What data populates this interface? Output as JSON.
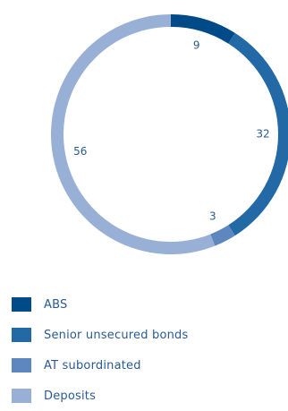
{
  "chart_data": {
    "type": "pie",
    "variant": "donut",
    "categories": [
      "ABS",
      "Senior unsecured bonds",
      "AT subordinated",
      "Deposits"
    ],
    "values": [
      9,
      32,
      3,
      56
    ],
    "colors": [
      "#004b87",
      "#2269a5",
      "#5f87bf",
      "#99b0d6"
    ],
    "label_color": "#2a5a91",
    "legend_text_color": "#2a5a91",
    "start_angle_deg": 0,
    "direction": "clockwise",
    "legend_placement": "bottom-left"
  }
}
